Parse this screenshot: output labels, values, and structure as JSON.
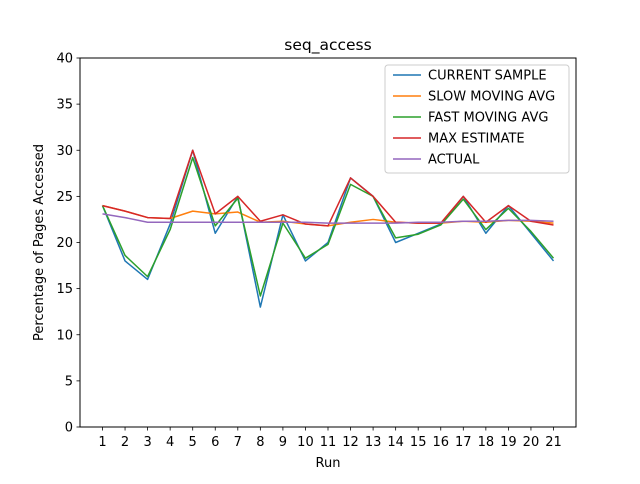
{
  "chart_data": {
    "type": "line",
    "title": "seq_access",
    "xlabel": "Run",
    "ylabel": "Percentage of Pages Accessed",
    "ylim": [
      0,
      40
    ],
    "yticks": [
      0,
      5,
      10,
      15,
      20,
      25,
      30,
      35,
      40
    ],
    "x": [
      1,
      2,
      3,
      4,
      5,
      6,
      7,
      8,
      9,
      10,
      11,
      12,
      13,
      14,
      15,
      16,
      17,
      18,
      19,
      20,
      21
    ],
    "legend_position": "top-right",
    "grid": false,
    "series": [
      {
        "name": "CURRENT SAMPLE",
        "color": "#1f77b4",
        "values": [
          24,
          18,
          16,
          22,
          30,
          21,
          25,
          13,
          23,
          18,
          20,
          27,
          25,
          20,
          21,
          22,
          25,
          21,
          24,
          21,
          18
        ]
      },
      {
        "name": "SLOW MOVING AVG",
        "color": "#ff7f0e",
        "values": [
          24,
          23.4,
          22.7,
          22.6,
          23.4,
          23.1,
          23.3,
          22.2,
          22.3,
          22.0,
          21.8,
          22.2,
          22.5,
          22.2,
          22.1,
          22.1,
          22.3,
          22.2,
          22.4,
          22.3,
          22.1
        ]
      },
      {
        "name": "FAST MOVING AVG",
        "color": "#2ca02c",
        "values": [
          24,
          18.6,
          16.3,
          21.4,
          29.2,
          21.8,
          24.8,
          14.2,
          22.1,
          18.3,
          19.8,
          26.3,
          25.0,
          20.5,
          20.9,
          21.9,
          24.7,
          21.4,
          23.7,
          21.2,
          18.3
        ]
      },
      {
        "name": "MAX ESTIMATE",
        "color": "#d62728",
        "values": [
          24,
          23.4,
          22.7,
          22.6,
          30,
          23.1,
          25,
          22.3,
          23,
          22.0,
          21.8,
          27,
          25,
          22.2,
          22.1,
          22.1,
          25,
          22.2,
          24,
          22.3,
          21.9
        ]
      },
      {
        "name": "ACTUAL",
        "color": "#9467bd",
        "values": [
          23.1,
          22.7,
          22.2,
          22.2,
          22.2,
          22.2,
          22.2,
          22.2,
          22.2,
          22.2,
          22.1,
          22.1,
          22.1,
          22.1,
          22.2,
          22.2,
          22.3,
          22.3,
          22.4,
          22.4,
          22.3
        ]
      }
    ]
  }
}
